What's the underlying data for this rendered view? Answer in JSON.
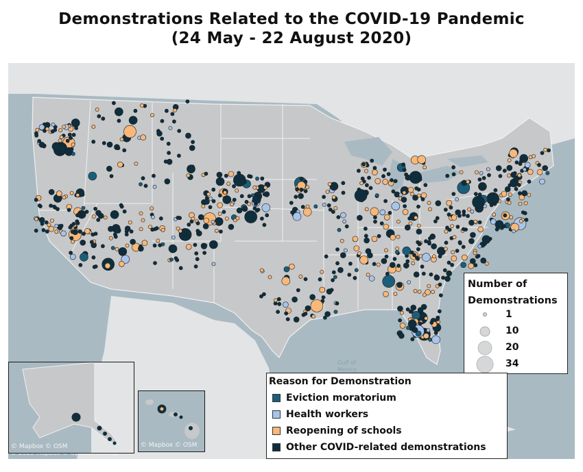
{
  "title": {
    "line1": "Demonstrations Related to the COVID-19 Pandemic",
    "line2": "(24 May - 22 August 2020)"
  },
  "credits": {
    "main": "© 2020 Mapbox © OpenStreetMap",
    "alaska": "© Mapbox © OSM",
    "hawaii": "© Mapbox © OSM"
  },
  "map_labels": {
    "gulf_line1": "Gulf of",
    "gulf_line2": "Mexico"
  },
  "size_legend": {
    "title_line1": "Number  of",
    "title_line2": "Demonstrations",
    "items": [
      "1",
      "10",
      "20",
      "34"
    ]
  },
  "color_legend": {
    "title": "Reason for Demonstration",
    "items": [
      {
        "label": "Eviction moratorium",
        "color": "#1b5e7a"
      },
      {
        "label": "Health workers",
        "color": "#a9c4ea"
      },
      {
        "label": "Reopening of schools",
        "color": "#f7b87a"
      },
      {
        "label": "Other COVID-related demonstrations",
        "color": "#0f2e3d"
      }
    ]
  },
  "colors": {
    "water": "#a9bac3",
    "land_foreign": "#e2e4e5",
    "land_states": "#c6c8ca",
    "state_border": "#f0f0f0"
  }
}
